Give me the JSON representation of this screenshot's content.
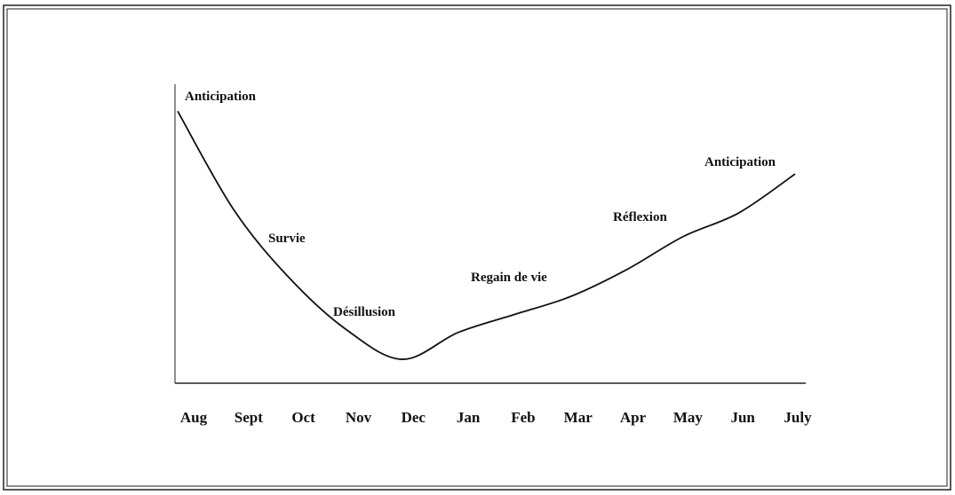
{
  "chart_data": {
    "type": "line",
    "categories": [
      "Aug",
      "Sept",
      "Oct",
      "Nov",
      "Dec",
      "Jan",
      "Feb",
      "Mar",
      "Apr",
      "May",
      "Jun",
      "July"
    ],
    "values": [
      91,
      58,
      35,
      18,
      8,
      17,
      23,
      29,
      38,
      49,
      57,
      70
    ],
    "ylim": [
      0,
      100
    ],
    "color": "#111111",
    "annotations": [
      "Anticipation",
      "Survie",
      "Désillusion",
      "Regain de vie",
      "Réflexion",
      "Anticipation"
    ]
  }
}
